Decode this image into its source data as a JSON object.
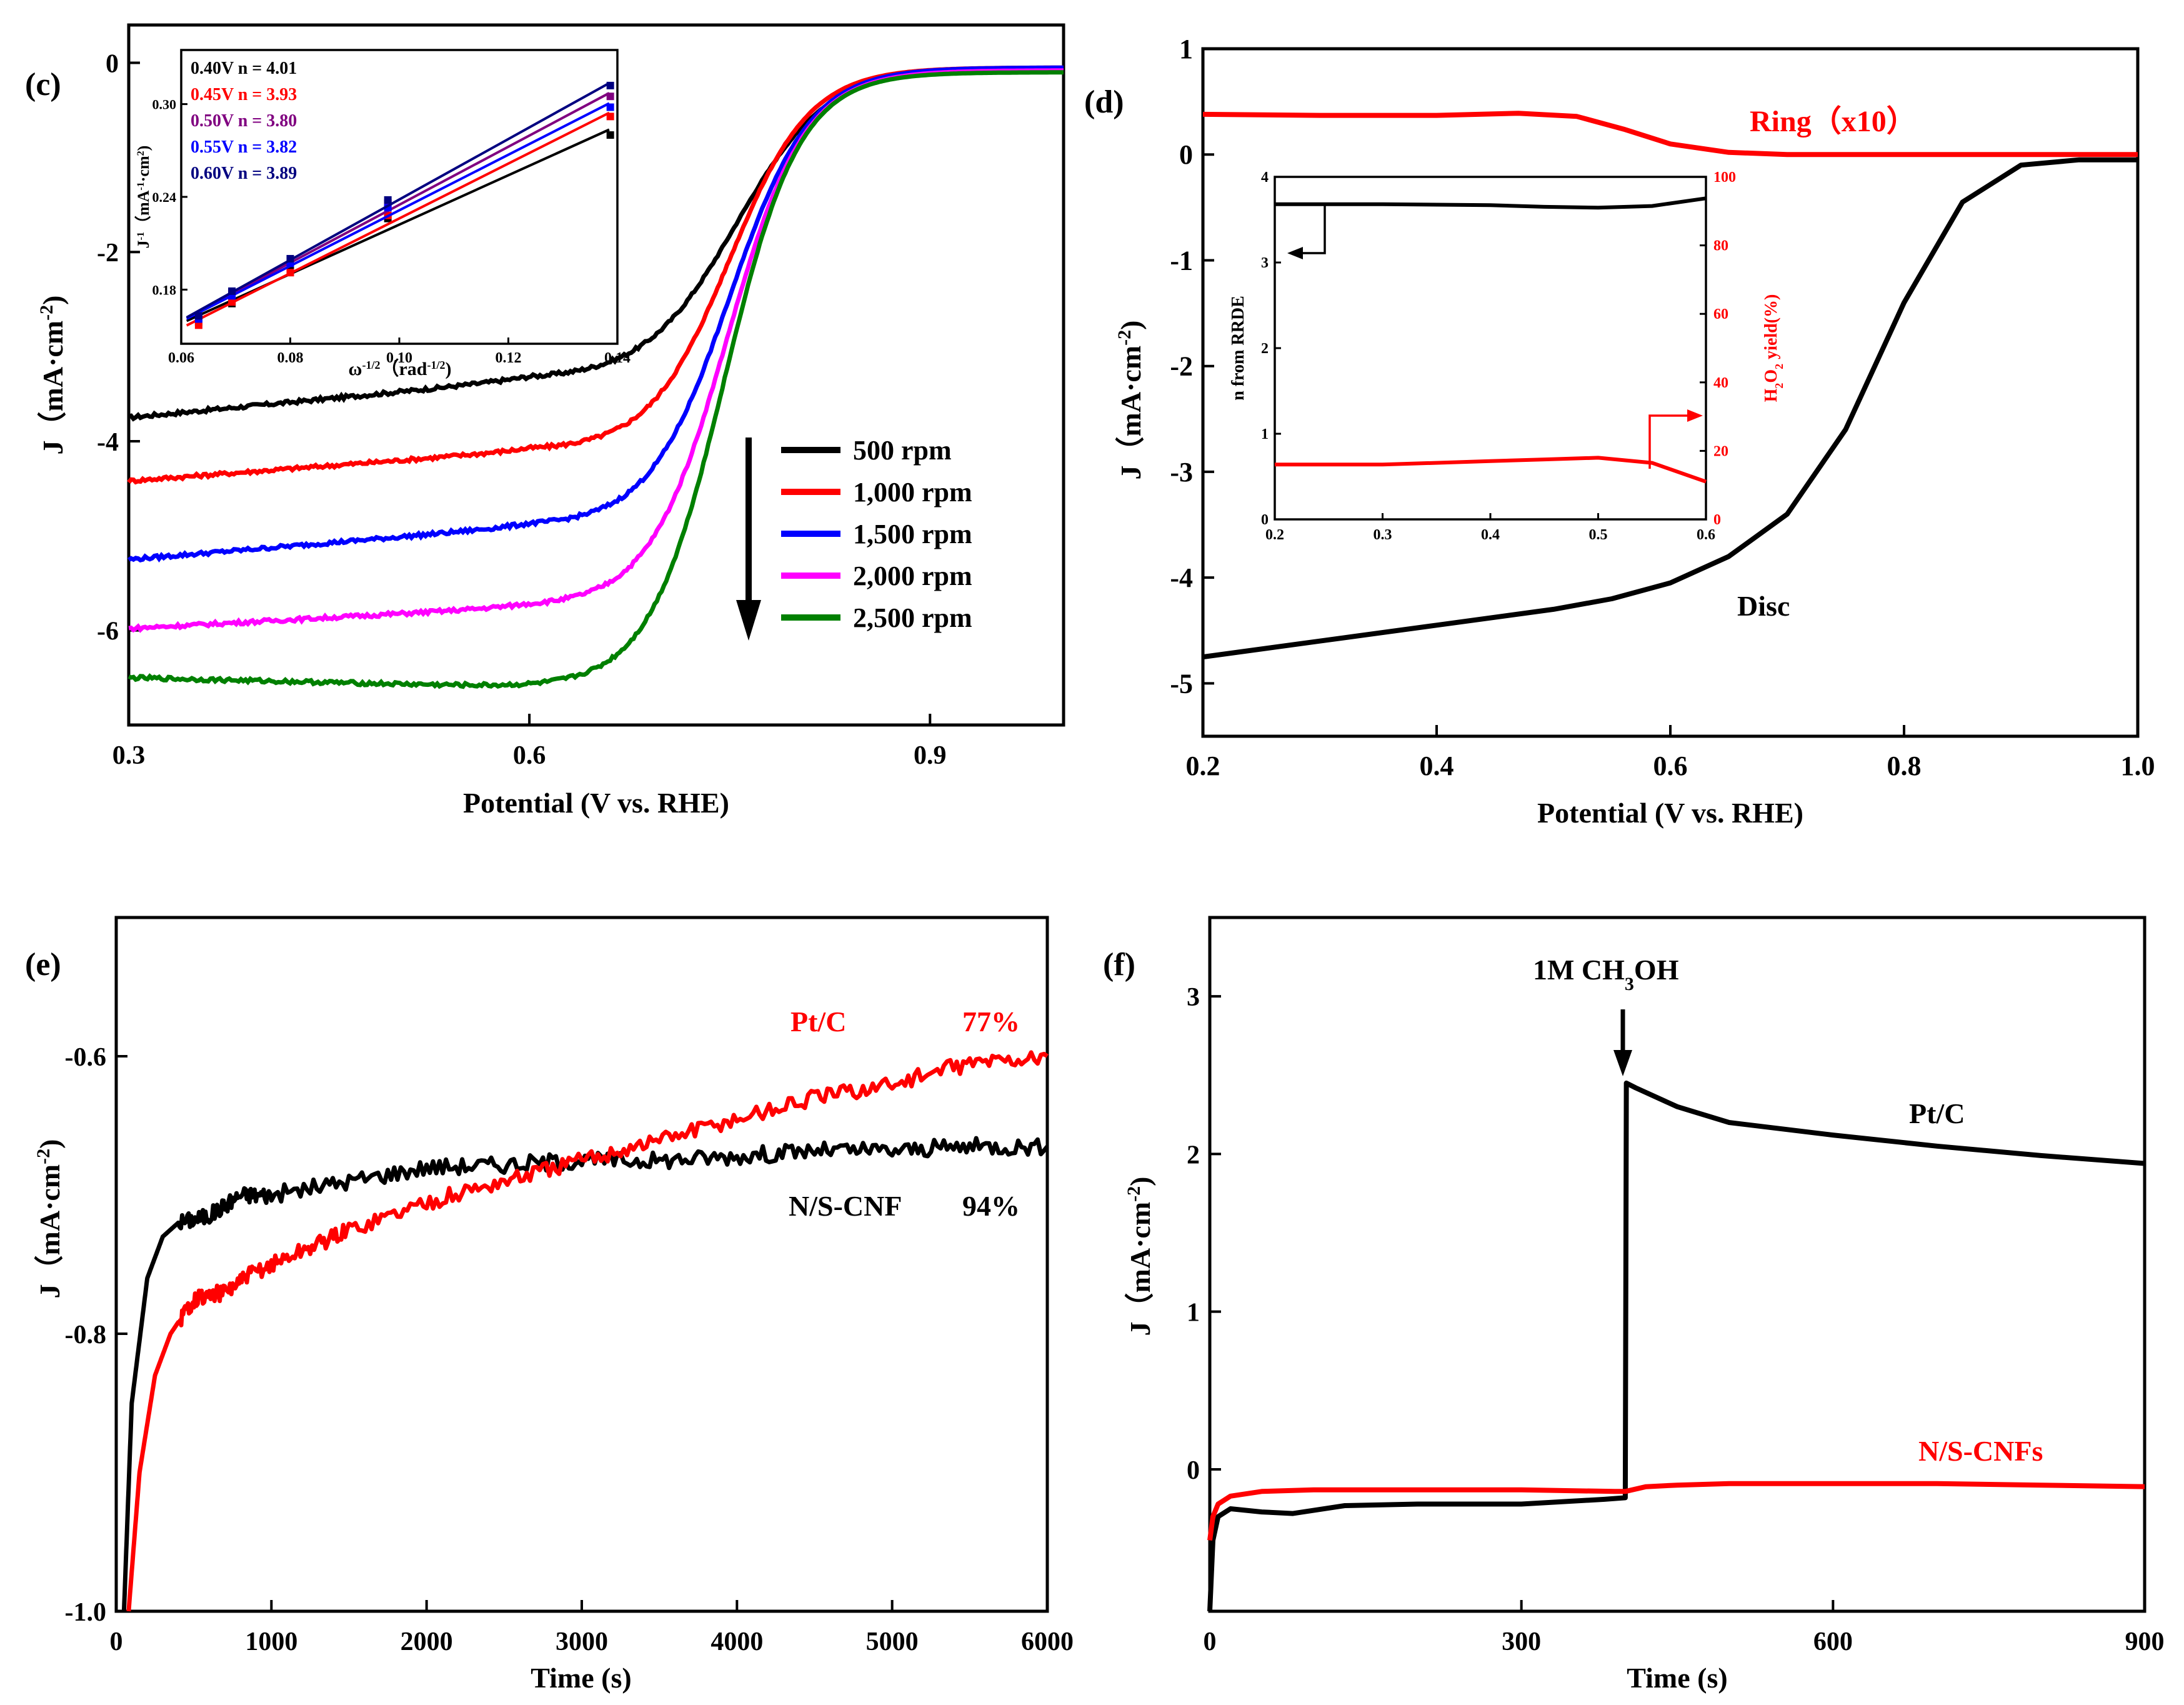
{
  "chart_data": [
    {
      "panel": "(c)",
      "type": "line",
      "xlabel": "Potential (V vs. RHE)",
      "ylabel": "J（mA·cm",
      "ylabel_sup": "-2",
      "ylabel_end": ")",
      "xlim": [
        0.3,
        1.0
      ],
      "ylim": [
        -7,
        0.4
      ],
      "xticks": [
        "0.3",
        "0.6",
        "0.9"
      ],
      "xtick_values": [
        0.3,
        0.6,
        0.9
      ],
      "yticks": [
        "0",
        "-2",
        "-4",
        "-6"
      ],
      "ytick_values": [
        0,
        -2,
        -4,
        -6
      ],
      "legend_position": "center-right",
      "series": [
        {
          "name": "500 rpm",
          "color": "#000000",
          "jl": -3.75,
          "jl_end": -3.35,
          "e_half": 0.755,
          "width": 0.034,
          "top": -0.05
        },
        {
          "name": "1,000 rpm",
          "color": "#ff0000",
          "jl": -4.42,
          "jl_end": -4.1,
          "e_half": 0.75,
          "width": 0.03,
          "top": -0.05
        },
        {
          "name": "1,500 rpm",
          "color": "#0000ff",
          "jl": -5.25,
          "jl_end": -4.9,
          "e_half": 0.75,
          "width": 0.03,
          "top": -0.05
        },
        {
          "name": "2,000 rpm",
          "color": "#ff00ff",
          "jl": -5.98,
          "jl_end": -5.75,
          "e_half": 0.748,
          "width": 0.029,
          "top": -0.08
        },
        {
          "name": "2,500 rpm",
          "color": "#008000",
          "jl": -6.5,
          "jl_end": -6.6,
          "e_half": 0.746,
          "width": 0.028,
          "top": -0.1
        }
      ],
      "inset": {
        "type": "scatter",
        "xlabel": "ω",
        "xlabel_sup": "-1/2",
        "xlabel_end": "（rad",
        "xlabel_unit_sup": "-1/2",
        "xlabel_close": ")",
        "ylabel": "J",
        "ylabel_sup": "-1",
        "ylabel_end": "（mA",
        "ylabel_unit_sup": "-1",
        "ylabel_close": "·cm",
        "ylabel_close_sup": "2",
        "ylabel_paren": ")",
        "xlim": [
          0.06,
          0.14
        ],
        "ylim": [
          0.145,
          0.335
        ],
        "xticks": [
          "0.06",
          "0.08",
          "0.10",
          "0.12",
          "0.14"
        ],
        "xtick_values": [
          0.06,
          0.08,
          0.1,
          0.12,
          0.14
        ],
        "yticks": [
          "0.18",
          "0.24",
          "0.30"
        ],
        "ytick_values": [
          0.18,
          0.24,
          0.3
        ],
        "x_points": [
          0.0632,
          0.0693,
          0.08,
          0.0979,
          0.1387
        ],
        "series": [
          {
            "label": "0.40V n = 4.01",
            "color": "#000000",
            "values": [
              0.159,
              0.171,
              0.193,
              0.226,
              0.28
            ]
          },
          {
            "label": "0.45V n = 3.93",
            "color": "#ff0000",
            "values": [
              0.157,
              0.172,
              0.191,
              0.228,
              0.292
            ]
          },
          {
            "label": "0.50V n = 3.80",
            "color": "#800080",
            "values": [
              0.162,
              0.178,
              0.198,
              0.236,
              0.305
            ]
          },
          {
            "label": "0.55V n = 3.82",
            "color": "#0000ff",
            "values": [
              0.161,
              0.176,
              0.197,
              0.233,
              0.298
            ]
          },
          {
            "label": "0.60V n = 3.89",
            "color": "#000080",
            "values": [
              0.163,
              0.179,
              0.2,
              0.238,
              0.312
            ]
          }
        ]
      }
    },
    {
      "panel": "(d)",
      "type": "line",
      "xlabel": "Potential (V vs. RHE)",
      "ylabel": "J（mA·cm",
      "ylabel_sup": "-2",
      "ylabel_end": ")",
      "xlim": [
        0.2,
        1.0
      ],
      "ylim": [
        -5.5,
        1.0
      ],
      "xticks": [
        "0.2",
        "0.4",
        "0.6",
        "0.8",
        "1.0"
      ],
      "xtick_values": [
        0.2,
        0.4,
        0.6,
        0.8,
        1.0
      ],
      "yticks": [
        "1",
        "0",
        "-1",
        "-2",
        "-3",
        "-4",
        "-5"
      ],
      "ytick_values": [
        1,
        0,
        -1,
        -2,
        -3,
        -4,
        -5
      ],
      "annotations": [
        "Ring（x10）",
        "Disc"
      ],
      "series": [
        {
          "name": "Ring (x10)",
          "color": "#ff0000",
          "x": [
            0.2,
            0.3,
            0.4,
            0.47,
            0.52,
            0.56,
            0.6,
            0.65,
            0.7,
            0.8,
            0.9,
            1.0
          ],
          "values": [
            0.38,
            0.37,
            0.37,
            0.39,
            0.36,
            0.24,
            0.1,
            0.02,
            0.0,
            0.0,
            0.0,
            0.0
          ]
        },
        {
          "name": "Disc",
          "color": "#000000",
          "x": [
            0.2,
            0.3,
            0.4,
            0.5,
            0.55,
            0.6,
            0.65,
            0.7,
            0.75,
            0.8,
            0.85,
            0.9,
            0.95,
            1.0
          ],
          "values": [
            -4.75,
            -4.6,
            -4.45,
            -4.3,
            -4.2,
            -4.05,
            -3.8,
            -3.4,
            -2.6,
            -1.4,
            -0.45,
            -0.1,
            -0.05,
            -0.05
          ]
        }
      ],
      "inset": {
        "type": "line",
        "xlim": [
          0.2,
          0.6
        ],
        "xticks": [
          "0.2",
          "0.3",
          "0.4",
          "0.5",
          "0.6"
        ],
        "xtick_values": [
          0.2,
          0.3,
          0.4,
          0.5,
          0.6
        ],
        "left_ylim": [
          0,
          4
        ],
        "left_yticks": [
          "0",
          "1",
          "2",
          "3",
          "4"
        ],
        "left_ylabel": "n from RRDE",
        "right_ylim": [
          0,
          100
        ],
        "right_yticks": [
          "0",
          "20",
          "40",
          "60",
          "80",
          "100"
        ],
        "right_ylabel": "H",
        "right_ylabel_sub": "2",
        "right_ylabel_mid": "O",
        "right_ylabel_sub2": "2",
        "right_ylabel_end": " yield(%)",
        "series": [
          {
            "name": "n",
            "axis": "left",
            "color": "#000000",
            "x": [
              0.2,
              0.3,
              0.4,
              0.45,
              0.5,
              0.55,
              0.6
            ],
            "values": [
              3.68,
              3.68,
              3.67,
              3.65,
              3.64,
              3.66,
              3.75
            ]
          },
          {
            "name": "H2O2 yield",
            "axis": "right",
            "color": "#ff0000",
            "x": [
              0.2,
              0.3,
              0.4,
              0.45,
              0.5,
              0.55,
              0.6
            ],
            "values": [
              16,
              16,
              17,
              17.5,
              18,
              16.5,
              11
            ]
          }
        ]
      }
    },
    {
      "panel": "(e)",
      "type": "line",
      "xlabel": "Time (s)",
      "ylabel": "J（mA·cm",
      "ylabel_sup": "-2",
      "ylabel_end": ")",
      "xlim": [
        0,
        6000
      ],
      "ylim": [
        -1.0,
        -0.5
      ],
      "xticks": [
        "0",
        "1000",
        "2000",
        "3000",
        "4000",
        "5000",
        "6000"
      ],
      "xtick_values": [
        0,
        1000,
        2000,
        3000,
        4000,
        5000,
        6000
      ],
      "yticks": [
        "-0.6",
        "-0.8",
        "-1.0"
      ],
      "ytick_values": [
        -0.6,
        -0.8,
        -1.0
      ],
      "annotations": [
        "Pt/C",
        "77%",
        "N/S-CNF",
        "94%"
      ],
      "series": [
        {
          "name": "N/S-CNF",
          "color": "#000000",
          "x": [
            50,
            100,
            200,
            300,
            400,
            600,
            800,
            1000,
            1500,
            2000,
            2500,
            3000,
            3500,
            4000,
            4500,
            5000,
            5500,
            6000
          ],
          "values": [
            -1.0,
            -0.85,
            -0.76,
            -0.73,
            -0.72,
            -0.715,
            -0.7,
            -0.7,
            -0.69,
            -0.68,
            -0.678,
            -0.675,
            -0.675,
            -0.672,
            -0.668,
            -0.668,
            -0.665,
            -0.665
          ]
        },
        {
          "name": "Pt/C",
          "color": "#ff0000",
          "x": [
            80,
            150,
            250,
            350,
            500,
            700,
            900,
            1200,
            1500,
            2000,
            2500,
            3000,
            3500,
            4000,
            4500,
            5000,
            5500,
            6000
          ],
          "values": [
            -1.0,
            -0.9,
            -0.83,
            -0.8,
            -0.775,
            -0.77,
            -0.755,
            -0.74,
            -0.725,
            -0.705,
            -0.69,
            -0.675,
            -0.66,
            -0.645,
            -0.63,
            -0.62,
            -0.605,
            -0.6
          ]
        }
      ]
    },
    {
      "panel": "(f)",
      "type": "line",
      "xlabel": "Time (s)",
      "ylabel": "J（mA·cm",
      "ylabel_sup": "-2",
      "ylabel_end": ")",
      "xlim": [
        0,
        900
      ],
      "ylim": [
        -0.9,
        3.5
      ],
      "xticks": [
        "0",
        "300",
        "600",
        "900"
      ],
      "xtick_values": [
        0,
        300,
        600,
        900
      ],
      "yticks": [
        "3",
        "2",
        "1",
        "0"
      ],
      "ytick_values": [
        3,
        2,
        1,
        0
      ],
      "annotations": [
        "1M CH",
        "3",
        "OH",
        "Pt/C",
        "N/S-CNFs"
      ],
      "series": [
        {
          "name": "Pt/C",
          "color": "#000000",
          "x": [
            0,
            3,
            8,
            20,
            50,
            80,
            130,
            200,
            300,
            380,
            400,
            401,
            410,
            450,
            500,
            600,
            700,
            800,
            900
          ],
          "values": [
            -0.9,
            -0.45,
            -0.3,
            -0.25,
            -0.27,
            -0.28,
            -0.23,
            -0.22,
            -0.22,
            -0.19,
            -0.18,
            2.45,
            2.42,
            2.3,
            2.2,
            2.12,
            2.05,
            1.99,
            1.94
          ]
        },
        {
          "name": "N/S-CNFs",
          "color": "#ff0000",
          "x": [
            0,
            3,
            8,
            20,
            50,
            100,
            200,
            300,
            390,
            400,
            420,
            450,
            500,
            600,
            700,
            800,
            900
          ],
          "values": [
            -0.45,
            -0.3,
            -0.22,
            -0.17,
            -0.14,
            -0.13,
            -0.13,
            -0.13,
            -0.14,
            -0.14,
            -0.11,
            -0.1,
            -0.09,
            -0.09,
            -0.09,
            -0.1,
            -0.11
          ]
        }
      ]
    }
  ],
  "colors": {
    "black": "#000000",
    "red": "#ff0000",
    "blue": "#0000ff",
    "magenta": "#ff00ff",
    "green": "#008000",
    "purple": "#800080",
    "navy": "#000080"
  }
}
